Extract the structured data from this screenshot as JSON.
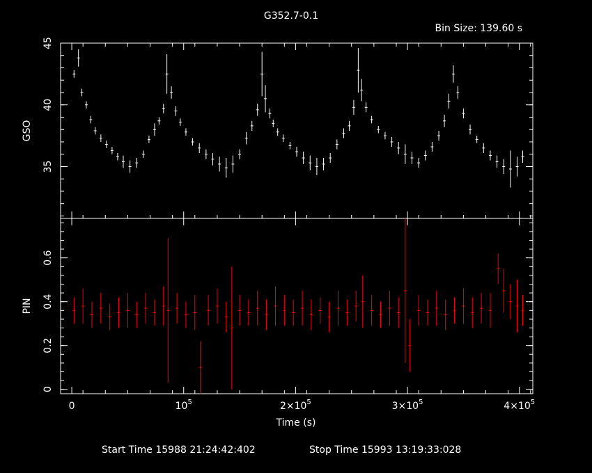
{
  "chart_data": {
    "type": "scatter",
    "title": "G352.7-0.1",
    "bin_size_label": "Bin Size: 139.60 s",
    "xlabel": "Time (s)",
    "footer": {
      "start": "Start Time 15988 21:24:42:402",
      "stop": "Stop Time 15993 13:19:33:028"
    },
    "x_tick_labels": [
      "0",
      "10",
      "2×10",
      "3×10",
      "4×10"
    ],
    "x_tick_exponent": "5",
    "xlim": [
      -10000,
      412000
    ],
    "colors": {
      "top": "#ffffff",
      "bottom": "#ff0000"
    },
    "panels": [
      {
        "ylabel": "GSO",
        "ylim": [
          30.8,
          45
        ],
        "yticks": [
          35,
          40,
          45
        ],
        "color": "#ffffff",
        "series": {
          "x": [
            2000,
            6000,
            9000,
            13000,
            17000,
            21000,
            26000,
            31000,
            36000,
            41000,
            46000,
            52000,
            58000,
            64000,
            69000,
            74000,
            78000,
            82000,
            85000,
            89000,
            93000,
            97000,
            102000,
            108000,
            114000,
            120000,
            126000,
            132000,
            138000,
            144000,
            150000,
            156000,
            161000,
            166000,
            170000,
            173000,
            177000,
            180000,
            184000,
            189000,
            195000,
            201000,
            207000,
            213000,
            219000,
            225000,
            231000,
            237000,
            243000,
            248000,
            252000,
            256000,
            259000,
            263000,
            268000,
            274000,
            280000,
            286000,
            292000,
            298000,
            304000,
            310000,
            316000,
            322000,
            328000,
            333000,
            337000,
            341000,
            345000,
            350000,
            356000,
            362000,
            368000,
            374000,
            380000,
            386000,
            392000,
            398000,
            403000
          ],
          "y": [
            42.5,
            43.8,
            41.0,
            40.0,
            38.8,
            37.9,
            37.3,
            36.8,
            36.3,
            35.8,
            35.4,
            35.0,
            35.3,
            36.0,
            37.2,
            38.0,
            38.7,
            39.7,
            42.5,
            41.0,
            39.5,
            38.6,
            37.8,
            37.0,
            36.5,
            36.0,
            35.6,
            35.2,
            34.9,
            35.2,
            36.0,
            37.3,
            38.3,
            39.6,
            42.5,
            40.5,
            39.3,
            38.5,
            37.8,
            37.3,
            36.7,
            36.2,
            35.7,
            35.3,
            35.0,
            35.2,
            35.7,
            36.8,
            37.7,
            38.3,
            39.8,
            42.8,
            41.2,
            39.8,
            38.8,
            38.0,
            37.5,
            37.0,
            36.5,
            36.0,
            35.7,
            35.3,
            35.9,
            36.6,
            37.5,
            38.7,
            40.3,
            42.5,
            41.0,
            39.3,
            38.0,
            37.2,
            36.5,
            35.9,
            35.4,
            35.0,
            34.8,
            35.0,
            35.8
          ],
          "err_y": [
            0.3,
            0.7,
            0.3,
            0.3,
            0.3,
            0.3,
            0.3,
            0.3,
            0.3,
            0.3,
            0.5,
            0.5,
            0.4,
            0.3,
            0.3,
            0.5,
            0.3,
            0.4,
            1.6,
            0.5,
            0.4,
            0.3,
            0.3,
            0.3,
            0.4,
            0.4,
            0.5,
            0.6,
            0.8,
            0.7,
            0.4,
            0.5,
            0.4,
            0.5,
            1.8,
            1.1,
            0.4,
            0.3,
            0.3,
            0.3,
            0.3,
            0.4,
            0.5,
            0.6,
            0.7,
            0.5,
            0.4,
            0.4,
            0.4,
            0.4,
            0.6,
            1.8,
            0.9,
            0.4,
            0.3,
            0.3,
            0.3,
            0.4,
            0.5,
            0.8,
            0.5,
            0.4,
            0.4,
            0.4,
            0.4,
            0.5,
            0.6,
            0.7,
            0.5,
            0.4,
            0.4,
            0.3,
            0.4,
            0.4,
            0.5,
            0.6,
            1.5,
            0.8,
            0.5
          ]
        }
      },
      {
        "ylabel": "PIN",
        "ylim": [
          -0.02,
          0.78
        ],
        "yticks": [
          0,
          0.2,
          0.4,
          0.6
        ],
        "color": "#ff0000",
        "series": {
          "x": [
            2000,
            10000,
            18000,
            26000,
            34000,
            42000,
            50000,
            58000,
            66000,
            74000,
            82000,
            86000,
            94000,
            102000,
            110000,
            115000,
            122000,
            130000,
            138000,
            143000,
            150000,
            158000,
            166000,
            174000,
            182000,
            190000,
            198000,
            206000,
            214000,
            222000,
            230000,
            238000,
            246000,
            254000,
            260000,
            268000,
            276000,
            284000,
            292000,
            298000,
            302000,
            310000,
            318000,
            326000,
            334000,
            342000,
            350000,
            358000,
            366000,
            374000,
            381000,
            386000,
            392000,
            398000,
            403000
          ],
          "y": [
            0.36,
            0.38,
            0.34,
            0.37,
            0.33,
            0.35,
            0.36,
            0.34,
            0.37,
            0.35,
            0.38,
            0.36,
            0.37,
            0.34,
            0.35,
            0.1,
            0.36,
            0.38,
            0.33,
            0.28,
            0.36,
            0.35,
            0.37,
            0.34,
            0.38,
            0.36,
            0.35,
            0.37,
            0.34,
            0.36,
            0.33,
            0.37,
            0.35,
            0.38,
            0.4,
            0.36,
            0.34,
            0.37,
            0.35,
            0.45,
            0.2,
            0.36,
            0.35,
            0.37,
            0.34,
            0.36,
            0.38,
            0.35,
            0.37,
            0.36,
            0.55,
            0.45,
            0.4,
            0.38,
            0.36
          ],
          "err_y": [
            0.06,
            0.08,
            0.06,
            0.07,
            0.06,
            0.07,
            0.08,
            0.06,
            0.07,
            0.06,
            0.09,
            0.33,
            0.07,
            0.06,
            0.08,
            0.12,
            0.07,
            0.08,
            0.07,
            0.28,
            0.07,
            0.06,
            0.08,
            0.07,
            0.09,
            0.07,
            0.06,
            0.08,
            0.07,
            0.06,
            0.07,
            0.08,
            0.06,
            0.07,
            0.12,
            0.07,
            0.06,
            0.08,
            0.07,
            0.33,
            0.12,
            0.07,
            0.06,
            0.08,
            0.07,
            0.06,
            0.08,
            0.07,
            0.07,
            0.08,
            0.07,
            0.1,
            0.08,
            0.12,
            0.07
          ]
        }
      }
    ]
  }
}
